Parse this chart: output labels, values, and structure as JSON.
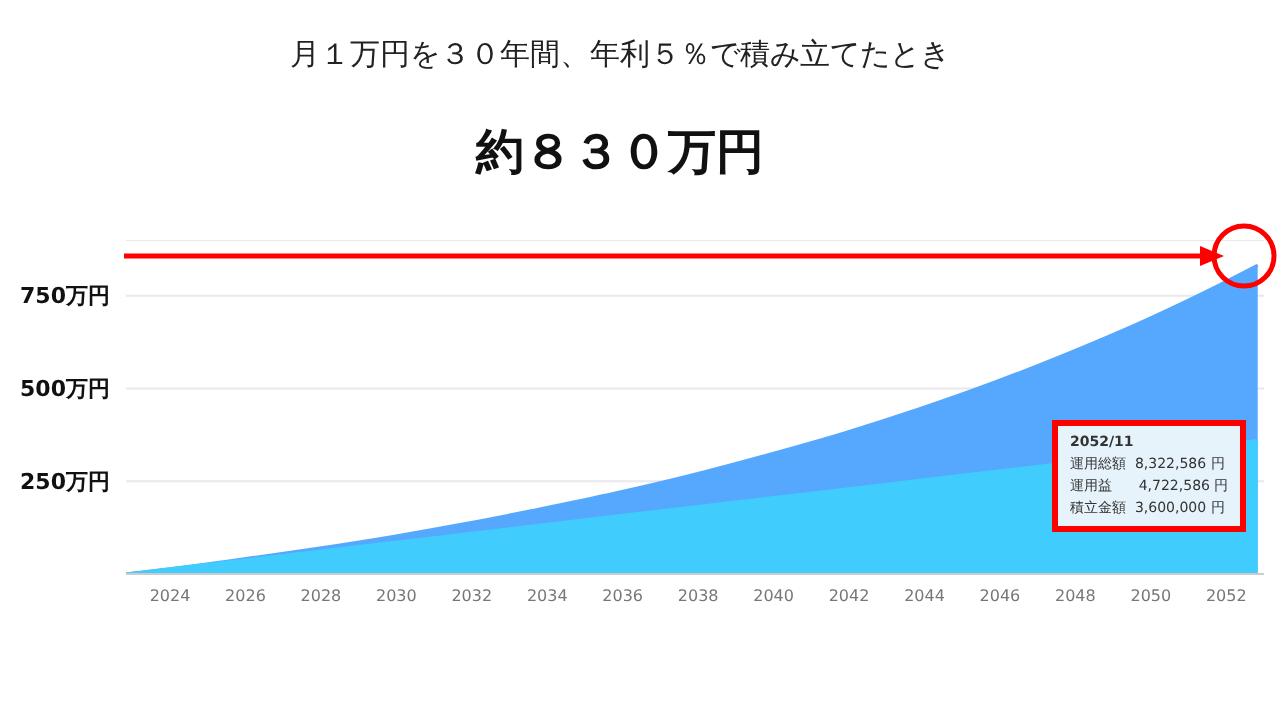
{
  "chart_data": {
    "type": "area",
    "title": "約８３０万円",
    "subtitle": "月１万円を３０年間、年利５％で積み立てたとき",
    "x": [
      "2022-11",
      "2023-11",
      "2025-11",
      "2027-11",
      "2029-11",
      "2031-11",
      "2033-11",
      "2035-11",
      "2037-11",
      "2039-11",
      "2041-11",
      "2043-11",
      "2045-11",
      "2047-11",
      "2049-11",
      "2051-11",
      "2052-11"
    ],
    "series": [
      {
        "color": "#55a8fd",
        "values": [
          0,
          12,
          39,
          68,
          100,
          136,
          176,
          219,
          267,
          321,
          379,
          444,
          516,
          596,
          683,
          780,
          832
        ]
      },
      {
        "color": "#40cdfd",
        "values": [
          0,
          12,
          36,
          60,
          84,
          108,
          132,
          156,
          180,
          204,
          228,
          252,
          276,
          null,
          null,
          null,
          360
        ]
      }
    ],
    "xlim": [
      "2022-11",
      "2053-01"
    ],
    "xticks": [
      {
        "value": "2024-01",
        "label": "2024"
      },
      {
        "value": "2026-01",
        "label": "2026"
      },
      {
        "value": "2028-01",
        "label": "2028"
      },
      {
        "value": "2030-01",
        "label": "2030"
      },
      {
        "value": "2032-01",
        "label": "2032"
      },
      {
        "value": "2034-01",
        "label": "2034"
      },
      {
        "value": "2036-01",
        "label": "2036"
      },
      {
        "value": "2038-01",
        "label": "2038"
      },
      {
        "value": "2040-01",
        "label": "2040"
      },
      {
        "value": "2042-01",
        "label": "2042"
      },
      {
        "value": "2044-01",
        "label": "2044"
      },
      {
        "value": "2046-01",
        "label": "2046"
      },
      {
        "value": "2048-01",
        "label": "2048"
      },
      {
        "value": "2050-01",
        "label": "2050"
      },
      {
        "value": "2052-01",
        "label": "2052"
      }
    ],
    "ylim": [
      0,
      900
    ],
    "yticks": [
      {
        "value": 0,
        "label": null
      },
      {
        "value": 250,
        "label": "250万円"
      },
      {
        "value": 500,
        "label": "500万円"
      },
      {
        "value": 750,
        "label": "750万円"
      }
    ],
    "grid": "y",
    "legend": false,
    "marker": "none",
    "annotations": [
      "2052/11",
      "運用総額  8,322,586 円",
      "運用益      4,722,586 円",
      "積立金額  3,600,000 円"
    ]
  }
}
